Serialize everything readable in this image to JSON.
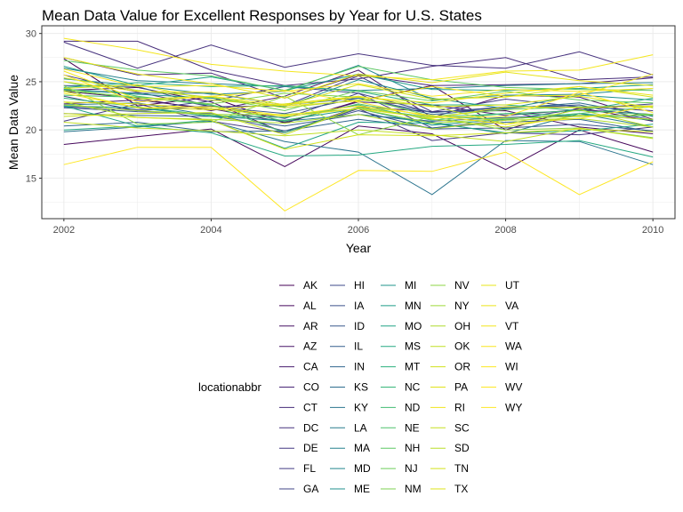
{
  "chart_data": {
    "type": "line",
    "title": "Mean Data Value for Excellent Responses by Year for U.S. States",
    "xlabel": "Year",
    "ylabel": "Mean Data Value",
    "x": [
      2002,
      2003,
      2004,
      2005,
      2006,
      2007,
      2008,
      2009,
      2010
    ],
    "x_ticks": [
      2002,
      2004,
      2006,
      2008,
      2010
    ],
    "y_ticks": [
      15,
      20,
      25,
      30
    ],
    "xlim": [
      2001.7,
      2010.3
    ],
    "ylim": [
      10.8,
      30.8
    ],
    "grid": true,
    "legend": {
      "title": "locationabbr",
      "position": "bottom"
    },
    "series": [
      {
        "name": "AK",
        "color": "#440154",
        "values": [
          27.4,
          22.5,
          23.4,
          20.7,
          23.0,
          24.6,
          20.0,
          22.3,
          20.9
        ]
      },
      {
        "name": "AL",
        "color": "#46085c",
        "values": [
          18.5,
          19.3,
          20.1,
          16.2,
          20.4,
          19.6,
          15.9,
          20.0,
          17.7
        ]
      },
      {
        "name": "AR",
        "color": "#471063",
        "values": [
          24.1,
          24.4,
          22.9,
          19.7,
          22.4,
          21.9,
          22.0,
          20.3,
          19.6
        ]
      },
      {
        "name": "AZ",
        "color": "#481769",
        "values": [
          24.0,
          23.3,
          22.0,
          23.5,
          26.2,
          21.3,
          23.6,
          23.4,
          21.1
        ]
      },
      {
        "name": "CA",
        "color": "#481d6f",
        "values": [
          22.7,
          23.1,
          22.2,
          20.8,
          22.9,
          22.6,
          21.5,
          22.1,
          21.6
        ]
      },
      {
        "name": "CO",
        "color": "#482576",
        "values": [
          27.5,
          25.7,
          25.9,
          23.3,
          25.7,
          24.6,
          24.7,
          24.8,
          25.4
        ]
      },
      {
        "name": "CT",
        "color": "#472c7a",
        "values": [
          29.2,
          29.2,
          26.2,
          24.6,
          25.3,
          26.6,
          27.5,
          25.2,
          25.5
        ]
      },
      {
        "name": "DC",
        "color": "#46327e",
        "values": [
          29.1,
          26.4,
          28.8,
          26.5,
          27.9,
          26.7,
          26.4,
          28.1,
          25.7
        ]
      },
      {
        "name": "DE",
        "color": "#453882",
        "values": [
          20.9,
          22.7,
          20.9,
          19.7,
          22.2,
          18.9,
          19.7,
          19.5,
          20.3
        ]
      },
      {
        "name": "FL",
        "color": "#433e85",
        "values": [
          25.7,
          23.9,
          22.4,
          22.5,
          25.6,
          21.9,
          23.2,
          22.4,
          22.0
        ]
      },
      {
        "name": "GA",
        "color": "#414487",
        "values": [
          23.5,
          22.0,
          22.5,
          21.2,
          23.8,
          20.2,
          21.0,
          22.2,
          22.7
        ]
      },
      {
        "name": "HI",
        "color": "#3e4989",
        "values": [
          22.4,
          22.1,
          23.0,
          24.5,
          23.8,
          21.8,
          22.4,
          22.4,
          22.5
        ]
      },
      {
        "name": "IA",
        "color": "#3b528b",
        "values": [
          22.3,
          21.9,
          21.7,
          19.9,
          22.0,
          20.1,
          20.2,
          20.6,
          19.9
        ]
      },
      {
        "name": "ID",
        "color": "#38588c",
        "values": [
          24.6,
          24.5,
          22.4,
          21.7,
          23.3,
          21.8,
          22.3,
          22.6,
          21.0
        ]
      },
      {
        "name": "IL",
        "color": "#355f8d",
        "values": [
          21.7,
          21.5,
          21.4,
          20.4,
          21.6,
          20.9,
          21.3,
          21.5,
          21.5
        ]
      },
      {
        "name": "IN",
        "color": "#31668e",
        "values": [
          20.4,
          20.8,
          19.8,
          19.9,
          21.1,
          20.2,
          20.8,
          21.1,
          19.8
        ]
      },
      {
        "name": "KS",
        "color": "#2e6d8e",
        "values": [
          24.2,
          23.8,
          23.8,
          22.6,
          23.3,
          21.6,
          22.2,
          22.8,
          21.4
        ]
      },
      {
        "name": "KY",
        "color": "#2b748e",
        "values": [
          19.8,
          20.3,
          20.9,
          18.8,
          17.7,
          13.3,
          18.9,
          18.8,
          16.4
        ]
      },
      {
        "name": "LA",
        "color": "#297b8e",
        "values": [
          22.6,
          22.8,
          21.5,
          20.9,
          21.6,
          20.8,
          19.6,
          21.7,
          20.3
        ]
      },
      {
        "name": "MA",
        "color": "#26818e",
        "values": [
          26.4,
          25.1,
          24.8,
          24.5,
          24.1,
          24.3,
          24.6,
          24.8,
          24.9
        ]
      },
      {
        "name": "MD",
        "color": "#23888e",
        "values": [
          25.3,
          24.6,
          23.7,
          24.0,
          26.7,
          23.1,
          23.6,
          23.7,
          24.3
        ]
      },
      {
        "name": "ME",
        "color": "#208f8c",
        "values": [
          24.2,
          23.7,
          23.3,
          22.4,
          25.2,
          23.3,
          22.2,
          23.6,
          23.1
        ]
      },
      {
        "name": "MI",
        "color": "#1f958b",
        "values": [
          22.5,
          22.3,
          21.4,
          21.0,
          22.2,
          20.5,
          21.1,
          21.7,
          21.0
        ]
      },
      {
        "name": "MN",
        "color": "#1f9c89",
        "values": [
          26.6,
          24.6,
          25.5,
          24.1,
          25.8,
          24.2,
          24.1,
          24.3,
          24.7
        ]
      },
      {
        "name": "MO",
        "color": "#21a386",
        "values": [
          22.5,
          20.4,
          21.0,
          18.1,
          20.8,
          20.7,
          19.7,
          19.9,
          20.6
        ]
      },
      {
        "name": "MS",
        "color": "#26a982",
        "values": [
          20.0,
          20.4,
          19.7,
          17.3,
          17.4,
          18.3,
          18.5,
          18.9,
          17.2
        ]
      },
      {
        "name": "MT",
        "color": "#2db07e",
        "values": [
          24.4,
          24.9,
          24.5,
          24.6,
          24.0,
          22.6,
          22.6,
          22.0,
          23.3
        ]
      },
      {
        "name": "NC",
        "color": "#37b679",
        "values": [
          23.3,
          22.4,
          21.5,
          21.3,
          22.6,
          21.0,
          21.7,
          21.5,
          21.5
        ]
      },
      {
        "name": "ND",
        "color": "#42bb72",
        "values": [
          23.6,
          23.4,
          22.6,
          19.7,
          22.3,
          21.3,
          21.7,
          22.0,
          21.6
        ]
      },
      {
        "name": "NE",
        "color": "#4fc16b",
        "values": [
          25.0,
          23.5,
          22.6,
          20.9,
          22.7,
          21.4,
          21.1,
          21.7,
          22.4
        ]
      },
      {
        "name": "NH",
        "color": "#5dc863",
        "values": [
          27.2,
          26.2,
          25.6,
          24.1,
          26.6,
          25.2,
          24.4,
          24.2,
          24.1
        ]
      },
      {
        "name": "NJ",
        "color": "#6ccd5a",
        "values": [
          24.3,
          23.2,
          23.4,
          22.0,
          24.1,
          23.0,
          24.0,
          23.1,
          22.8
        ]
      },
      {
        "name": "NM",
        "color": "#7cd250",
        "values": [
          24.1,
          23.4,
          22.7,
          23.8,
          23.4,
          21.4,
          22.1,
          22.4,
          22.4
        ]
      },
      {
        "name": "NV",
        "color": "#8dd645",
        "values": [
          24.6,
          20.6,
          20.8,
          23.5,
          19.5,
          21.4,
          20.0,
          20.2,
          19.2
        ]
      },
      {
        "name": "NY",
        "color": "#9ed93a",
        "values": [
          22.6,
          22.0,
          21.6,
          21.6,
          22.2,
          20.7,
          21.2,
          21.4,
          21.6
        ]
      },
      {
        "name": "OH",
        "color": "#afdc2e",
        "values": [
          22.9,
          21.3,
          21.1,
          20.7,
          21.6,
          20.1,
          21.0,
          21.2,
          20.3
        ]
      },
      {
        "name": "OK",
        "color": "#c0df25",
        "values": [
          20.8,
          20.2,
          19.9,
          19.4,
          20.0,
          19.5,
          18.8,
          20.2,
          19.1
        ]
      },
      {
        "name": "OR",
        "color": "#d1e11c",
        "values": [
          24.3,
          24.7,
          23.1,
          22.5,
          24.7,
          23.2,
          23.4,
          24.5,
          23.4
        ]
      },
      {
        "name": "PA",
        "color": "#e1e21a",
        "values": [
          22.9,
          22.7,
          22.2,
          21.4,
          22.2,
          21.2,
          22.4,
          22.3,
          22.5
        ]
      },
      {
        "name": "RI",
        "color": "#f1e51d",
        "values": [
          26.1,
          23.2,
          23.5,
          22.5,
          23.0,
          24.5,
          23.5,
          23.6,
          25.8
        ]
      },
      {
        "name": "SC",
        "color": "#c5e021",
        "values": [
          21.4,
          21.7,
          21.8,
          19.5,
          22.4,
          21.1,
          20.3,
          21.5,
          21.1
        ]
      },
      {
        "name": "SD",
        "color": "#bade28",
        "values": [
          25.4,
          24.1,
          23.4,
          22.3,
          23.1,
          22.5,
          20.6,
          22.1,
          20.3
        ]
      },
      {
        "name": "TN",
        "color": "#d2e21b",
        "values": [
          21.7,
          21.3,
          21.0,
          18.0,
          19.5,
          19.4,
          19.7,
          20.1,
          19.8
        ]
      },
      {
        "name": "TX",
        "color": "#dde318",
        "values": [
          24.0,
          22.3,
          22.1,
          22.7,
          23.5,
          22.4,
          22.6,
          23.5,
          22.3
        ]
      },
      {
        "name": "UT",
        "color": "#e7e419",
        "values": [
          27.5,
          25.8,
          24.8,
          23.3,
          25.8,
          24.9,
          26.0,
          25.1,
          24.6
        ]
      },
      {
        "name": "VA",
        "color": "#ece51b",
        "values": [
          25.0,
          24.0,
          23.9,
          22.6,
          23.4,
          22.8,
          23.8,
          24.5,
          23.6
        ]
      },
      {
        "name": "VT",
        "color": "#f4e61e",
        "values": [
          29.5,
          28.3,
          26.8,
          26.1,
          25.6,
          25.2,
          26.1,
          26.2,
          27.8
        ]
      },
      {
        "name": "WA",
        "color": "#f8e621",
        "values": [
          26.3,
          24.5,
          24.6,
          24.0,
          24.8,
          23.5,
          24.2,
          24.0,
          24.3
        ]
      },
      {
        "name": "WI",
        "color": "#fbe723",
        "values": [
          23.8,
          22.3,
          22.4,
          21.5,
          22.5,
          21.5,
          20.6,
          21.2,
          22.5
        ]
      },
      {
        "name": "WV",
        "color": "#fde725",
        "values": [
          16.4,
          18.2,
          18.2,
          11.6,
          15.8,
          15.7,
          17.7,
          13.3,
          16.7
        ]
      },
      {
        "name": "WY",
        "color": "#fde725",
        "values": [
          25.7,
          22.9,
          23.5,
          24.1,
          22.9,
          21.3,
          21.4,
          23.9,
          21.8
        ]
      }
    ]
  }
}
